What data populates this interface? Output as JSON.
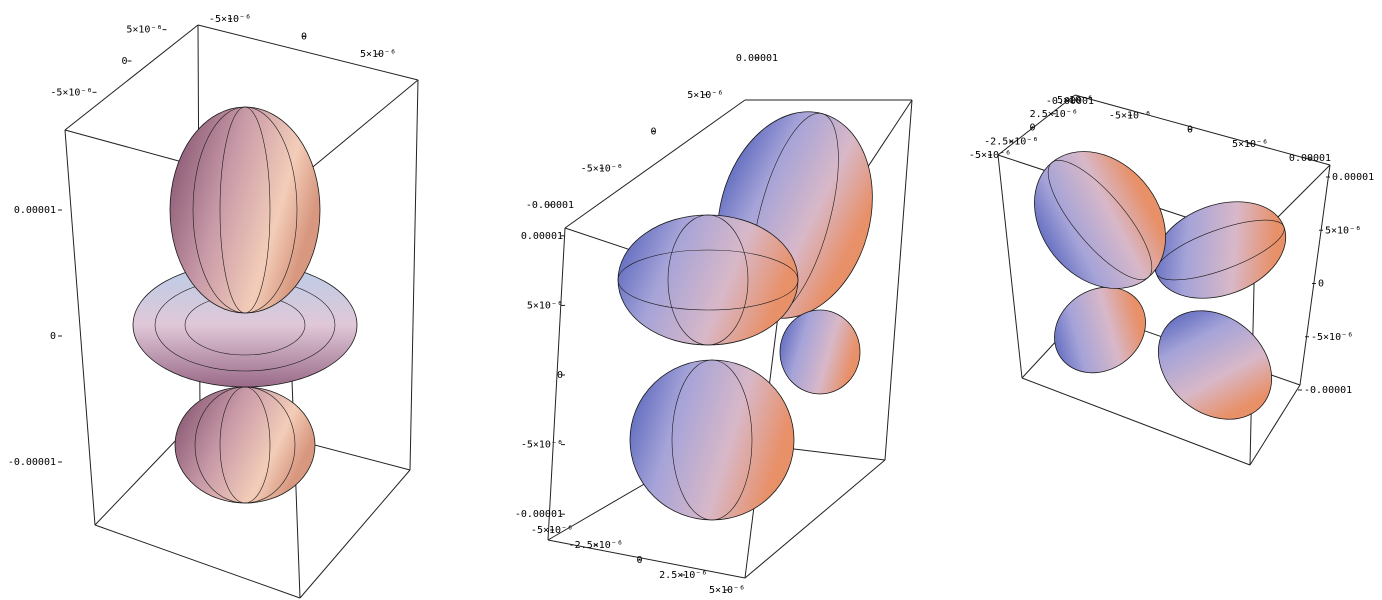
{
  "chart_data": [
    {
      "type": "surface3d",
      "xlim": [
        -7.5e-06,
        7.5e-06
      ],
      "xticks": [
        {
          "value": -5e-06,
          "label": "-5×10⁻⁶"
        },
        0,
        {
          "value": 5e-06,
          "label": "5×10⁻⁶"
        }
      ],
      "ylim": [
        -7.5e-06,
        7.5e-06
      ],
      "yticks": [
        {
          "value": -5e-06,
          "label": "-5×10⁻⁶"
        },
        0,
        {
          "value": 5e-06,
          "label": "5×10⁻⁶"
        }
      ],
      "zlim": [
        -1.5e-05,
        1.5e-05
      ],
      "zticks": [
        -1e-05,
        0,
        1e-05
      ]
    },
    {
      "type": "surface3d",
      "xlim": [
        -1e-05,
        1e-05
      ],
      "xticks": [
        -1e-05,
        {
          "value": -5e-06,
          "label": "-5×10⁻⁶"
        },
        0,
        {
          "value": 5e-06,
          "label": "5×10⁻⁶"
        },
        1e-05
      ],
      "ylim": [
        -5e-06,
        5e-06
      ],
      "yticks": [
        {
          "value": -5e-06,
          "label": "-5×10⁻⁶"
        },
        {
          "value": -2.5e-06,
          "label": "-2.5×10⁻⁶"
        },
        0,
        {
          "value": 2.5e-06,
          "label": "2.5×10⁻⁶"
        },
        {
          "value": 5e-06,
          "label": "5×10⁻⁶"
        }
      ],
      "zlim": [
        -1.2e-05,
        1.2e-05
      ],
      "zticks": [
        -1e-05,
        {
          "value": -5e-06,
          "label": "-5×10⁻⁶"
        },
        0,
        {
          "value": 5e-06,
          "label": "5×10⁻⁶"
        },
        1e-05
      ]
    },
    {
      "type": "surface3d",
      "xlim": [
        -1e-05,
        1e-05
      ],
      "xticks": [
        -1e-05,
        {
          "value": -5e-06,
          "label": "-5×10⁻⁶"
        },
        0,
        {
          "value": 5e-06,
          "label": "5×10⁻⁶"
        },
        1e-05
      ],
      "ylim": [
        -5e-06,
        5e-06
      ],
      "yticks": [
        {
          "value": -5e-06,
          "label": "-5×10⁻⁶"
        },
        {
          "value": -2.5e-06,
          "label": "-2.5×10⁻⁶"
        },
        0,
        {
          "value": 2.5e-06,
          "label": "2.5×10⁻⁶"
        },
        {
          "value": 5e-06,
          "label": "5×10⁻⁶"
        }
      ],
      "zlim": [
        -1e-05,
        1e-05
      ],
      "zticks": [
        -1e-05,
        {
          "value": -5e-06,
          "label": "-5×10⁻⁶"
        },
        0,
        {
          "value": 5e-06,
          "label": "5×10⁻⁶"
        },
        1e-05
      ]
    }
  ]
}
